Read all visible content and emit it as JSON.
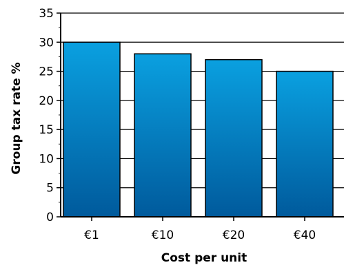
{
  "chart_data": {
    "type": "bar",
    "title": "",
    "xlabel": "Cost per unit",
    "ylabel": "Group tax rate %",
    "categories": [
      "€1",
      "€10",
      "€20",
      "€40"
    ],
    "values": [
      30,
      28,
      27,
      25
    ],
    "ylim": [
      0,
      35
    ],
    "yticks": [
      0,
      5,
      10,
      15,
      20,
      25,
      30,
      35
    ],
    "grid": true,
    "bar_color_top": "#0aa0e0",
    "bar_color_bottom": "#005a9c"
  }
}
